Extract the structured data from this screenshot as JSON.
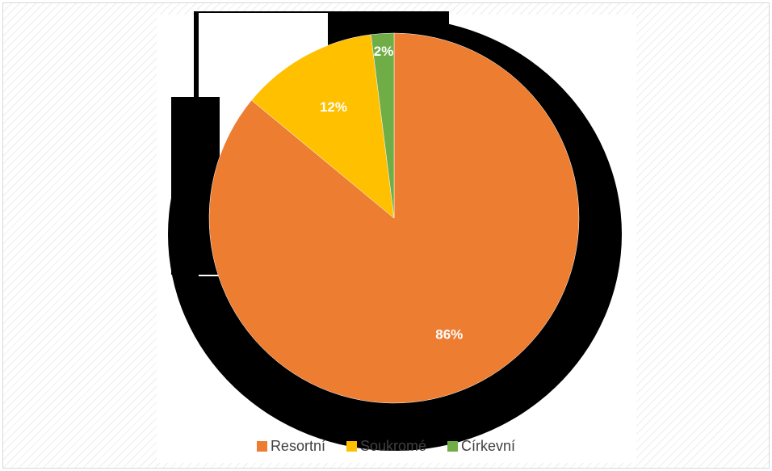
{
  "chart_data": {
    "type": "pie",
    "categories": [
      "Resortní",
      "Soukromé",
      "Církevní"
    ],
    "values": [
      86,
      12,
      2
    ],
    "data_labels": [
      "86%",
      "12%",
      "2%"
    ],
    "colors": [
      "#ED7D31",
      "#FFC000",
      "#70AD47"
    ],
    "legend_position": "bottom",
    "start_angle": "12 o'clock, clockwise"
  }
}
